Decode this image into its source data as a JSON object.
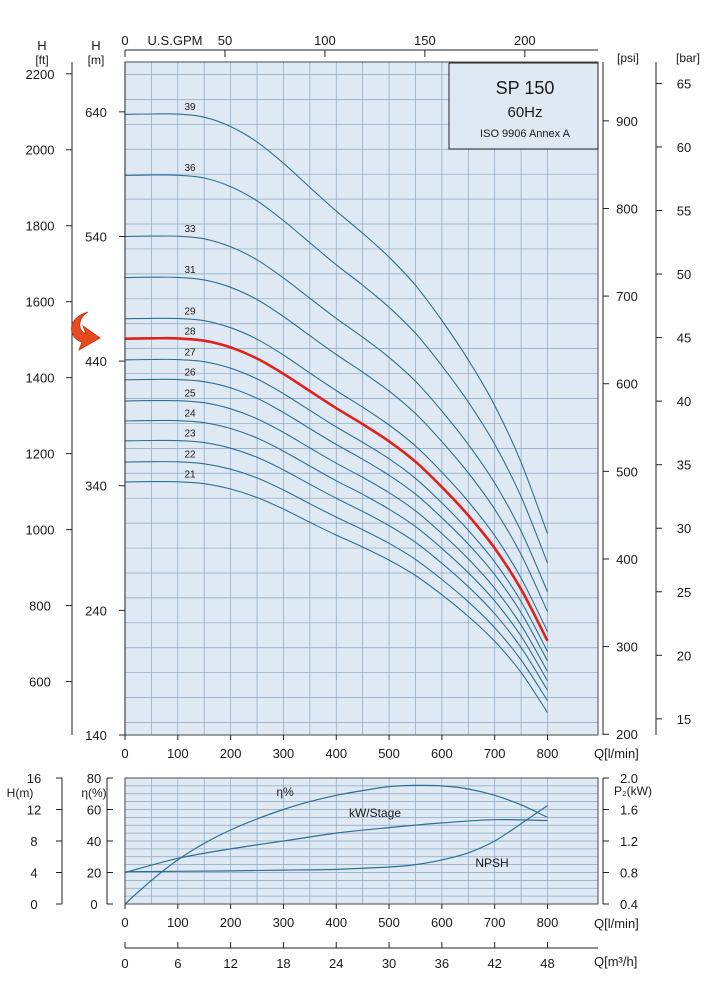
{
  "chart_data": [
    {
      "type": "line",
      "title": "SP 150",
      "subtitle": "60Hz",
      "standard": "ISO 9906 Annex A",
      "xlabel": "Q[l/min]",
      "x_ticks": [
        0,
        100,
        200,
        300,
        400,
        500,
        600,
        700,
        800
      ],
      "xlim": [
        0,
        800
      ],
      "top_axis": {
        "label": "U.S.GPM",
        "ticks": [
          0,
          50,
          100,
          150,
          200
        ]
      },
      "y_left_m": {
        "label": "H",
        "unit": "[m]",
        "ticks": [
          140,
          240,
          340,
          440,
          540,
          640
        ],
        "ylim": [
          140,
          660
        ]
      },
      "y_left_ft": {
        "label": "H",
        "unit": "[ft]",
        "ticks": [
          600,
          800,
          1000,
          1200,
          1400,
          1600,
          1800,
          2000,
          2200
        ]
      },
      "y_right_psi": {
        "unit": "[psi]",
        "ticks": [
          200,
          300,
          400,
          500,
          600,
          700,
          800,
          900
        ]
      },
      "y_right_bar": {
        "unit": "[bar]",
        "ticks": [
          15,
          20,
          25,
          30,
          35,
          40,
          45,
          50,
          55,
          60,
          65
        ]
      },
      "highlighted_series": "28",
      "highlight_color": "#e0201b",
      "curve_color": "#2f6f8f",
      "grid_color": "#8aa6c2",
      "background_color": "#dfe9f4",
      "x": [
        0,
        50,
        100,
        150,
        200,
        250,
        300,
        350,
        400,
        450,
        500,
        550,
        600,
        650,
        700,
        750,
        800
      ],
      "series": [
        {
          "name": "21",
          "values": [
            343,
            343.3,
            343.2,
            341.6,
            337.4,
            330.6,
            321.3,
            310.7,
            300.4,
            290.8,
            280.3,
            268,
            252.5,
            235.2,
            215.2,
            190.2,
            158
          ]
        },
        {
          "name": "22",
          "values": [
            359,
            359.3,
            359.2,
            357.6,
            353.3,
            346.3,
            336.6,
            325.6,
            314.8,
            304.7,
            293.8,
            280.9,
            264.8,
            246.9,
            226.1,
            200.2,
            167.5
          ]
        },
        {
          "name": "23",
          "values": [
            376,
            376.3,
            376.2,
            374.6,
            370.1,
            362.8,
            352.7,
            341.2,
            329.9,
            319.4,
            308,
            294.6,
            277.8,
            259,
            237.3,
            210.1,
            176
          ]
        },
        {
          "name": "24",
          "values": [
            392,
            392.3,
            392.2,
            390.6,
            385.9,
            378.3,
            367.8,
            355.8,
            344,
            333.1,
            321.2,
            307.2,
            289.7,
            270.2,
            247.6,
            219.3,
            183.5
          ]
        },
        {
          "name": "25",
          "values": [
            408,
            408.3,
            408.2,
            406.6,
            401.7,
            393.8,
            382.8,
            370.4,
            358.1,
            346.7,
            334.4,
            319.9,
            301.6,
            281.3,
            257.7,
            228.2,
            191
          ]
        },
        {
          "name": "26",
          "values": [
            425,
            425.3,
            425.2,
            423.5,
            418.5,
            410.2,
            398.8,
            385.9,
            373.1,
            361.2,
            348.4,
            333.3,
            314.3,
            293.2,
            268.7,
            238.1,
            199.5
          ]
        },
        {
          "name": "27",
          "values": [
            441,
            441.3,
            441.2,
            439.5,
            434.3,
            425.7,
            413.9,
            400.5,
            387.2,
            374.8,
            361.6,
            345.9,
            326.2,
            304.3,
            278.9,
            247.1,
            207
          ]
        },
        {
          "name": "28",
          "values": [
            458,
            458.3,
            458.2,
            456.4,
            451,
            442.1,
            429.8,
            416,
            402.2,
            389.4,
            375.6,
            359.3,
            338.9,
            316.2,
            289.8,
            256.9,
            215.5
          ]
        },
        {
          "name": "29",
          "values": [
            474,
            474.3,
            474.2,
            472.4,
            466.8,
            457.6,
            444.9,
            430.5,
            416.3,
            403,
            388.7,
            371.9,
            350.8,
            327.3,
            300,
            265.9,
            223
          ]
        },
        {
          "name": "31",
          "values": [
            507,
            507.3,
            507.2,
            505.2,
            499.2,
            489.4,
            475.8,
            460.5,
            445.3,
            431.1,
            415.9,
            397.9,
            375.4,
            350.3,
            321.1,
            284.8,
            239
          ]
        },
        {
          "name": "33",
          "values": [
            540,
            540.3,
            540.2,
            538.1,
            531.7,
            521.3,
            506.8,
            490.5,
            474.3,
            459.2,
            443,
            423.8,
            399.9,
            373.2,
            342.2,
            303.6,
            255
          ]
        },
        {
          "name": "36",
          "values": [
            589,
            589.3,
            589.2,
            586.9,
            580,
            568.6,
            552.8,
            535,
            517.3,
            500.9,
            483.2,
            462.3,
            436.2,
            407.1,
            373.3,
            331.2,
            278
          ]
        },
        {
          "name": "39",
          "values": [
            638,
            638.3,
            638.2,
            635.7,
            628.2,
            615.9,
            598.8,
            579.5,
            560.4,
            542.6,
            523.4,
            500.8,
            472.6,
            441,
            404.4,
            358.8,
            301.5
          ]
        }
      ]
    },
    {
      "type": "line",
      "xlabel": "Q[l/min]",
      "xlabel2": "Q[m³/h]",
      "x_ticks": [
        0,
        100,
        200,
        300,
        400,
        500,
        600,
        700,
        800
      ],
      "x2_ticks": [
        0,
        6,
        12,
        18,
        24,
        30,
        36,
        42,
        48
      ],
      "xlim": [
        0,
        800
      ],
      "y_left_h": {
        "label": "H(m)",
        "ticks": [
          0,
          4,
          8,
          12,
          16
        ]
      },
      "y_left_eta": {
        "label": "η(%)",
        "ticks": [
          0,
          20,
          40,
          60,
          80
        ]
      },
      "y_right_p2": {
        "label": "P₂(kW)",
        "ticks": [
          0.4,
          0.8,
          1.2,
          1.6,
          2.0
        ]
      },
      "series": [
        {
          "name": "η%",
          "axis": "eta",
          "x": [
            0,
            50,
            100,
            150,
            200,
            250,
            300,
            350,
            400,
            450,
            500,
            550,
            600,
            650,
            700,
            750,
            800
          ],
          "values": [
            0,
            15,
            28,
            38.5,
            47,
            54,
            60,
            65,
            69,
            72,
            74.5,
            75.3,
            75,
            73,
            69,
            63,
            55
          ]
        },
        {
          "name": "kW/Stage",
          "axis": "p2",
          "x": [
            0,
            100,
            200,
            300,
            400,
            500,
            600,
            700,
            800
          ],
          "values": [
            0.8,
            0.98,
            1.1,
            1.2,
            1.3,
            1.37,
            1.43,
            1.47,
            1.46
          ]
        },
        {
          "name": "NPSH",
          "axis": "h",
          "x": [
            0,
            100,
            200,
            300,
            400,
            500,
            550,
            600,
            650,
            700,
            750,
            800
          ],
          "values": [
            4.1,
            4.15,
            4.2,
            4.3,
            4.4,
            4.7,
            5.0,
            5.6,
            6.5,
            8.0,
            10.2,
            12.5
          ]
        }
      ]
    }
  ]
}
